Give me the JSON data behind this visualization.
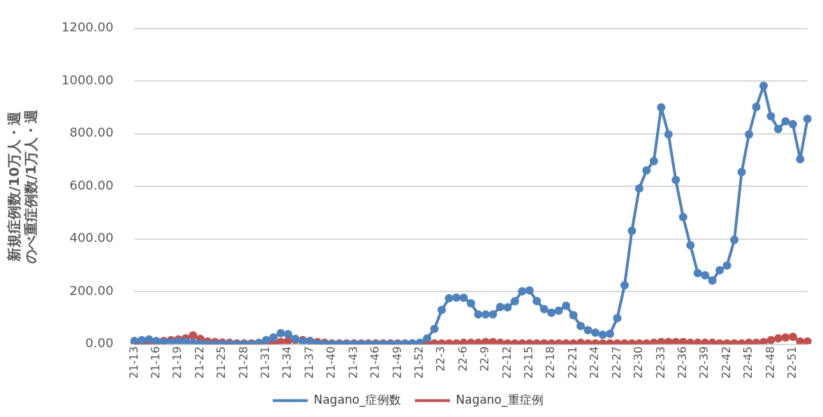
{
  "chart_data": {
    "type": "line",
    "ylabel": "新規症例数/10万人・週のべ重症例数/1万人・週",
    "categories": [
      "21-13",
      null,
      null,
      "21-16",
      null,
      null,
      "21-19",
      null,
      null,
      "21-22",
      null,
      null,
      "21-25",
      null,
      null,
      "21-28",
      null,
      null,
      "21-31",
      null,
      null,
      "21-34",
      null,
      null,
      "21-37",
      null,
      null,
      "21-40",
      null,
      null,
      "21-43",
      null,
      null,
      "21-46",
      null,
      null,
      "21-49",
      null,
      null,
      "21-52",
      null,
      null,
      "22-3",
      null,
      null,
      "22-6",
      null,
      null,
      "22-9",
      null,
      null,
      "22-12",
      null,
      null,
      "22-15",
      null,
      null,
      "22-18",
      null,
      null,
      "22-21",
      null,
      null,
      "22-24",
      null,
      null,
      "22-27",
      null,
      null,
      "22-30",
      null,
      null,
      "22-33",
      null,
      null,
      "22-36",
      null,
      null,
      "22-39",
      null,
      null,
      "22-42",
      null,
      null,
      "22-45",
      null,
      null,
      "22-48",
      null,
      null,
      "22-51",
      null,
      null
    ],
    "series": [
      {
        "name": "Nagano_症例数",
        "color": "#4f81bd",
        "values": [
          12,
          15,
          18,
          12,
          8,
          8,
          10,
          10,
          5,
          2,
          0,
          0,
          0,
          0,
          0,
          0,
          0,
          5,
          15,
          25,
          42,
          38,
          20,
          10,
          12,
          2,
          1,
          1,
          1,
          1,
          1,
          1,
          1,
          1,
          1,
          1,
          1,
          2,
          3,
          5,
          22,
          58,
          130,
          174,
          177,
          176,
          155,
          113,
          113,
          113,
          141,
          140,
          163,
          201,
          204,
          164,
          133,
          119,
          127,
          146,
          110,
          69,
          53,
          44,
          36,
          39,
          99,
          224,
          431,
          592,
          661,
          696,
          900,
          797,
          624,
          483,
          376,
          270,
          262,
          242,
          281,
          299,
          396,
          654,
          797,
          902,
          982,
          866,
          818,
          847,
          836,
          703,
          856
        ]
      },
      {
        "name": "Nagano_重症例",
        "color": "#c0504d",
        "values": [
          3,
          3,
          4,
          8,
          12,
          15,
          18,
          22,
          33,
          20,
          10,
          8,
          6,
          5,
          3,
          3,
          3,
          3,
          3,
          3,
          8,
          12,
          15,
          15,
          12,
          8,
          5,
          3,
          3,
          3,
          3,
          3,
          3,
          3,
          3,
          3,
          3,
          3,
          3,
          3,
          3,
          3,
          3,
          3,
          3,
          5,
          5,
          5,
          8,
          8,
          5,
          3,
          3,
          3,
          3,
          3,
          3,
          3,
          3,
          3,
          3,
          5,
          3,
          3,
          3,
          3,
          3,
          3,
          3,
          3,
          3,
          5,
          8,
          8,
          8,
          8,
          5,
          5,
          5,
          5,
          3,
          3,
          3,
          3,
          5,
          5,
          8,
          15,
          22,
          25,
          28,
          10,
          10
        ]
      }
    ],
    "ylim": [
      0,
      1200
    ],
    "yticks": [
      {
        "value": 0,
        "label": "0.00"
      },
      {
        "value": 200,
        "label": "200.00"
      },
      {
        "value": 400,
        "label": "400.00"
      },
      {
        "value": 600,
        "label": "600.00"
      },
      {
        "value": 800,
        "label": "800.00"
      },
      {
        "value": 1000,
        "label": "1000.00"
      },
      {
        "value": 1200,
        "label": "1200.00"
      }
    ],
    "grid": "y",
    "legend": "bottom",
    "marker": "circle",
    "line_style": "solid"
  }
}
